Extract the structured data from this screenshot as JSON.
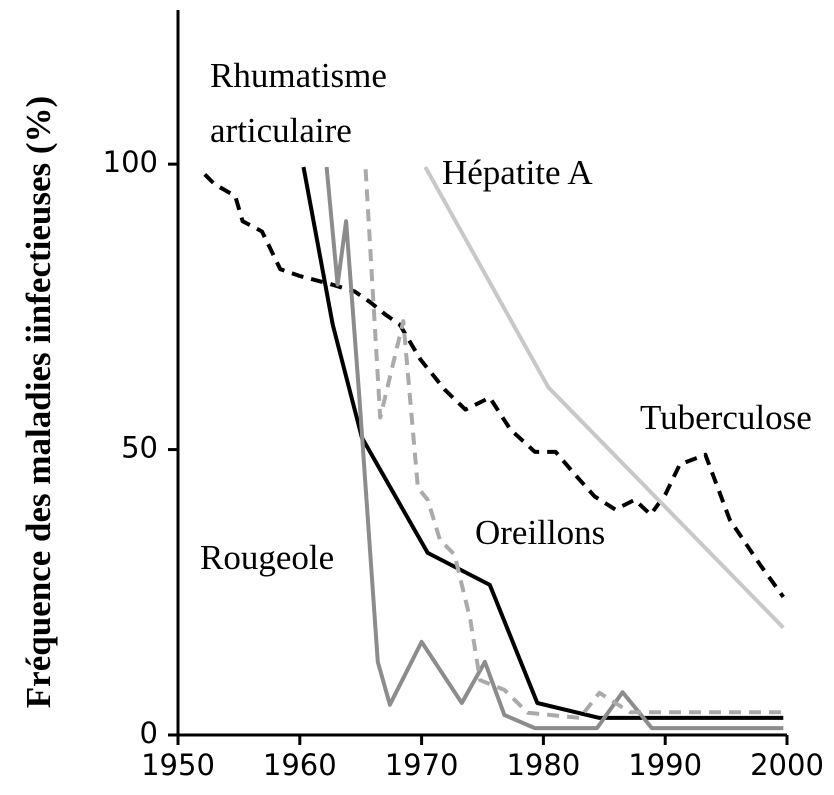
{
  "chart_data": {
    "type": "line",
    "ylabel": "Fréquence des maladies iinfectieuses (%)",
    "xlim": [
      1950,
      2000
    ],
    "xticks": [
      1950,
      1960,
      1970,
      1980,
      1990,
      2000
    ],
    "ylim": [
      0,
      127
    ],
    "yticks": [
      0,
      50,
      100
    ],
    "grid": false,
    "series": [
      {
        "name": "Tuberculose",
        "color": "#000000",
        "dashed": true,
        "x": [
          1952.2,
          1953,
          1954.7,
          1955.3,
          1956.9,
          1958.4,
          1960,
          1962.5,
          1964.5,
          1965.8,
          1967,
          1968.2,
          1969.9,
          1971.9,
          1973.6,
          1975.6,
          1977.3,
          1979.3,
          1981,
          1982.6,
          1984.2,
          1985.9,
          1987.5,
          1988.8,
          1990,
          1991.2,
          1993.3,
          1995.3,
          1997.8,
          1999.7
        ],
        "values": [
          98.2,
          96.5,
          94.4,
          90,
          88.2,
          81.6,
          80.4,
          79,
          77.7,
          75.8,
          73.7,
          71.9,
          65.8,
          60.5,
          57,
          59.1,
          53.5,
          49.6,
          49.6,
          45.6,
          41.8,
          39.5,
          41.2,
          38.6,
          42.1,
          47.4,
          49.1,
          37.7,
          29.8,
          24.2
        ]
      },
      {
        "name": "Rhumatisme articulaire",
        "color": "#000000",
        "dashed": false,
        "x": [
          1960.3,
          1962.7,
          1965.1,
          1970.5,
          1975.6,
          1979.5,
          1984.6,
          1999.7
        ],
        "values": [
          99.5,
          71.9,
          52.1,
          31.9,
          26.3,
          5.6,
          3,
          3
        ]
      },
      {
        "name": "Rougeole",
        "color": "#8c8c8c",
        "dashed": false,
        "x": [
          1962.2,
          1963.1,
          1963.8,
          1964.9,
          1966.4,
          1967.4,
          1970,
          1973.3,
          1975.2,
          1976.8,
          1979.3,
          1984.4,
          1986.5,
          1988.9,
          1999.7
        ],
        "values": [
          99.5,
          78.9,
          90,
          58.8,
          12.8,
          5.3,
          16.3,
          5.6,
          12.8,
          3.5,
          1.2,
          1.2,
          7.5,
          1.2,
          1.2
        ]
      },
      {
        "name": "Oreillons",
        "color": "#aaaaaa",
        "dashed": true,
        "x": [
          1965.4,
          1966.6,
          1968.5,
          1969.7,
          1970.5,
          1971.5,
          1972.7,
          1974,
          1974.8,
          1976.8,
          1978.7,
          1983,
          1984.6,
          1987.1,
          1999.7
        ],
        "values": [
          99.1,
          55.6,
          72.5,
          43.3,
          41.2,
          34.2,
          31.6,
          20.2,
          9.6,
          7.9,
          3.9,
          3,
          7.4,
          4,
          4
        ]
      },
      {
        "name": "Hépatite A",
        "color": "#c8c8c8",
        "dashed": false,
        "x": [
          1970.3,
          1980.4,
          1999.7
        ],
        "values": [
          99.5,
          60.9,
          18.8
        ]
      }
    ]
  }
}
